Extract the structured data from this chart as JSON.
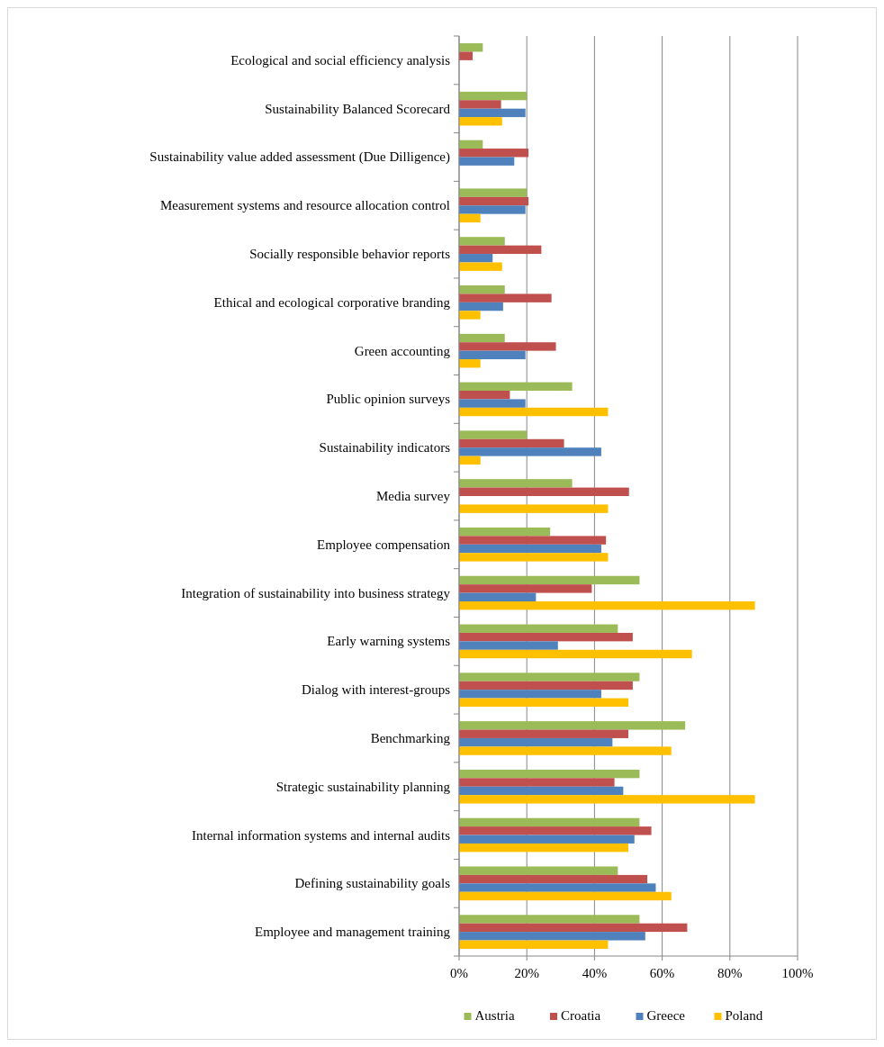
{
  "chart_data": {
    "type": "bar",
    "orientation": "horizontal",
    "categories": [
      "Ecological and social efficiency analysis",
      "Sustainability Balanced Scorecard",
      "Sustainability value added assessment (Due Dilligence)",
      "Measurement systems and resource allocation control",
      "Socially responsible behavior reports",
      "Ethical and ecological corporative branding",
      "Green accounting",
      "Public opinion surveys",
      "Sustainability indicators",
      "Media survey",
      "Employee compensation",
      "Integration of sustainability into business strategy",
      "Early warning systems",
      "Dialog with interest-groups",
      "Benchmarking",
      "Strategic sustainability planning",
      "Internal information systems and internal audits",
      "Defining sustainability goals",
      "Employee and management training"
    ],
    "series": [
      {
        "name": "Austria",
        "color": "#9bbb59",
        "values": [
          7,
          20,
          7,
          20,
          13.5,
          13.5,
          13.5,
          33.4,
          20,
          33.4,
          26.9,
          53.3,
          46.9,
          53.3,
          66.8,
          53.3,
          53.3,
          46.9,
          53.3
        ]
      },
      {
        "name": "Croatia",
        "color": "#c0504d",
        "values": [
          4,
          12.4,
          20.5,
          20.5,
          24.3,
          27.3,
          28.6,
          15,
          31,
          50.2,
          43.4,
          39.2,
          51.3,
          51.3,
          50,
          45.9,
          56.8,
          55.6,
          67.4
        ]
      },
      {
        "name": "Greece",
        "color": "#4f81bd",
        "values": [
          null,
          19.6,
          16.3,
          19.6,
          9.9,
          13,
          19.6,
          19.6,
          42,
          null,
          42,
          22.7,
          29.2,
          42,
          45.3,
          48.5,
          51.8,
          58.1,
          55
        ]
      },
      {
        "name": "Poland",
        "color": "#ffc000",
        "values": [
          null,
          12.7,
          null,
          6.3,
          12.7,
          6.3,
          6.3,
          44,
          6.3,
          44,
          44,
          87.4,
          68.8,
          50,
          62.7,
          87.4,
          50,
          62.7,
          44
        ]
      }
    ],
    "xlim": [
      0,
      100
    ],
    "xticks": [
      {
        "value": 0,
        "label": "0%"
      },
      {
        "value": 20,
        "label": "20%"
      },
      {
        "value": 40,
        "label": "40%"
      },
      {
        "value": 60,
        "label": "60%"
      },
      {
        "value": 80,
        "label": "80%"
      },
      {
        "value": 100,
        "label": "100%"
      }
    ],
    "grid": "x",
    "legend": "bottom"
  }
}
